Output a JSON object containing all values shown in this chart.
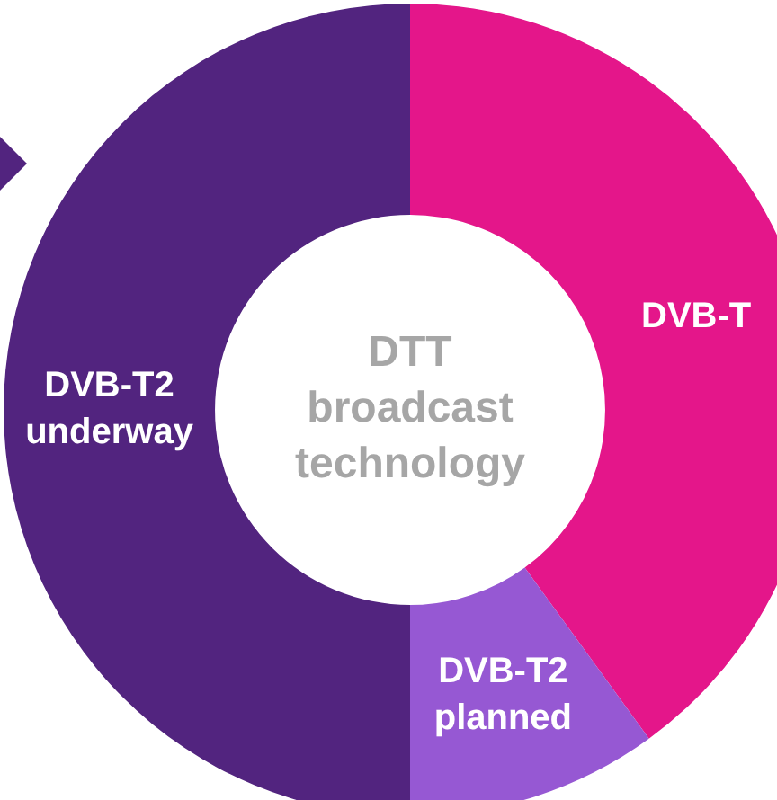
{
  "chart_data": {
    "type": "donut",
    "title": "DTT broadcast technology",
    "categories": [
      "DVB-T",
      "DVB-T2 planned",
      "DVB-T2 underway"
    ],
    "values": [
      40,
      10,
      50
    ],
    "colors": [
      "#e4168a",
      "#9658d3",
      "#52247f"
    ],
    "legend": false
  }
}
